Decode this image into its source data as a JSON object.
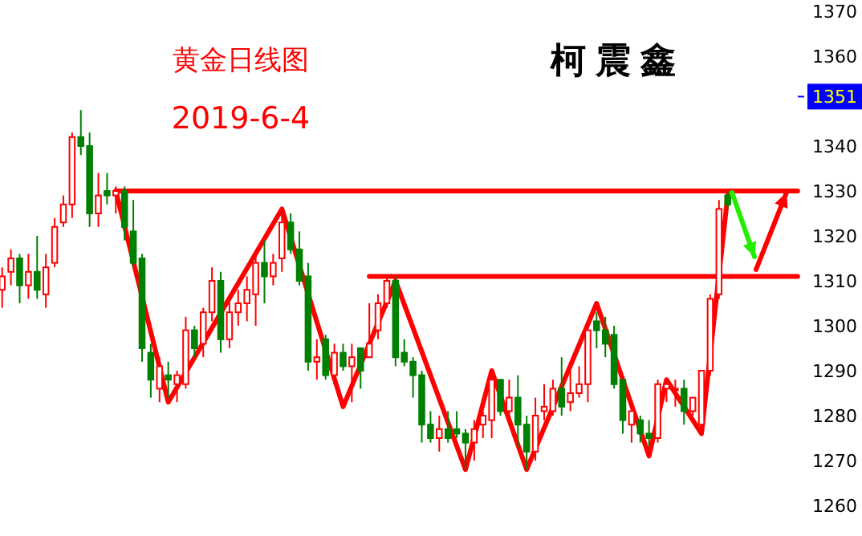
{
  "chart_data": {
    "type": "candlestick",
    "title": "黄金日线图",
    "subtitle": "2019-6-4",
    "annotations": [
      "柯震鑫"
    ],
    "categories": [
      null,
      null,
      null,
      null,
      null,
      null,
      null,
      null,
      null,
      null,
      null,
      null,
      null,
      null,
      null,
      null,
      null,
      null,
      null,
      null,
      null,
      null,
      null,
      null,
      null,
      null,
      null,
      null,
      null,
      null,
      null,
      null,
      null,
      null,
      null,
      null,
      null,
      null,
      null,
      null,
      null,
      null,
      null,
      null,
      null,
      null,
      null,
      null,
      null,
      null,
      null,
      null,
      null,
      null,
      null,
      null,
      null,
      null,
      null,
      null,
      null,
      null,
      null,
      null,
      null,
      null,
      null,
      null,
      null,
      null,
      null,
      null,
      null,
      null,
      null,
      null,
      null,
      null,
      null,
      null,
      null,
      null,
      null,
      null,
      null,
      null,
      null,
      null,
      null,
      null,
      null,
      null
    ],
    "ohlc": [
      [
        1308,
        1313,
        1304,
        1311
      ],
      [
        1312,
        1317,
        1309,
        1315
      ],
      [
        1315,
        1316,
        1305,
        1309
      ],
      [
        1309,
        1316,
        1306,
        1312
      ],
      [
        1312,
        1320,
        1306,
        1308
      ],
      [
        1307,
        1316,
        1304,
        1313
      ],
      [
        1314,
        1324,
        1313,
        1322
      ],
      [
        1323,
        1329,
        1322,
        1327
      ],
      [
        1327,
        1343,
        1324,
        1342
      ],
      [
        1342,
        1348,
        1338,
        1340
      ],
      [
        1340,
        1343,
        1322,
        1325
      ],
      [
        1325,
        1334,
        1322,
        1329
      ],
      [
        1330,
        1334,
        1327,
        1329
      ],
      [
        1329,
        1331,
        1325,
        1330
      ],
      [
        1330,
        1331,
        1319,
        1322
      ],
      [
        1321,
        1328,
        1313,
        1314
      ],
      [
        1315,
        1316,
        1292,
        1295
      ],
      [
        1294,
        1296,
        1284,
        1288
      ],
      [
        1286,
        1293,
        1283,
        1291
      ],
      [
        1289,
        1292,
        1284,
        1288
      ],
      [
        1287,
        1290,
        1283,
        1289
      ],
      [
        1287,
        1302,
        1286,
        1299
      ],
      [
        1299,
        1300,
        1293,
        1295
      ],
      [
        1296,
        1304,
        1293,
        1303
      ],
      [
        1303,
        1313,
        1301,
        1310
      ],
      [
        1310,
        1312,
        1294,
        1297
      ],
      [
        1297,
        1306,
        1295,
        1303
      ],
      [
        1303,
        1308,
        1300,
        1305
      ],
      [
        1305,
        1311,
        1301,
        1308
      ],
      [
        1307,
        1316,
        1300,
        1314
      ],
      [
        1314,
        1319,
        1305,
        1311
      ],
      [
        1311,
        1316,
        1309,
        1314
      ],
      [
        1315,
        1326,
        1312,
        1323
      ],
      [
        1323,
        1325,
        1316,
        1317
      ],
      [
        1317,
        1321,
        1309,
        1310
      ],
      [
        1311,
        1314,
        1290,
        1292
      ],
      [
        1292,
        1297,
        1288,
        1293
      ],
      [
        1297,
        1298,
        1288,
        1289
      ],
      [
        1289,
        1296,
        1287,
        1294
      ],
      [
        1294,
        1296,
        1290,
        1291
      ],
      [
        1291,
        1296,
        1283,
        1293
      ],
      [
        1295,
        1295,
        1286,
        1290
      ],
      [
        1293,
        1305,
        1293,
        1296
      ],
      [
        1299,
        1307,
        1297,
        1305
      ],
      [
        1305,
        1311,
        1304,
        1310
      ],
      [
        1310,
        1311,
        1291,
        1293
      ],
      [
        1294,
        1297,
        1291,
        1292
      ],
      [
        1292,
        1293,
        1284,
        1289
      ],
      [
        1289,
        1290,
        1274,
        1278
      ],
      [
        1278,
        1281,
        1274,
        1275
      ],
      [
        1275,
        1280,
        1272,
        1277
      ],
      [
        1277,
        1281,
        1274,
        1275
      ],
      [
        1277,
        1281,
        1275,
        1276
      ],
      [
        1276,
        1277,
        1268,
        1274
      ],
      [
        1274,
        1279,
        1270,
        1277
      ],
      [
        1278,
        1281,
        1275,
        1280
      ],
      [
        1279,
        1290,
        1275,
        1288
      ],
      [
        1288,
        1288,
        1280,
        1281
      ],
      [
        1281,
        1288,
        1280,
        1284
      ],
      [
        1284,
        1289,
        1273,
        1278
      ],
      [
        1278,
        1280,
        1268,
        1272
      ],
      [
        1272,
        1284,
        1270,
        1280
      ],
      [
        1281,
        1287,
        1279,
        1282
      ],
      [
        1281,
        1288,
        1280,
        1286
      ],
      [
        1286,
        1293,
        1280,
        1282
      ],
      [
        1283,
        1290,
        1281,
        1285
      ],
      [
        1285,
        1291,
        1284,
        1287
      ],
      [
        1287,
        1300,
        1283,
        1299
      ],
      [
        1301,
        1303,
        1295,
        1299
      ],
      [
        1299,
        1302,
        1293,
        1296
      ],
      [
        1298,
        1300,
        1286,
        1287
      ],
      [
        1288,
        1288,
        1276,
        1279
      ],
      [
        1278,
        1281,
        1274,
        1281
      ],
      [
        1279,
        1280,
        1274,
        1276
      ],
      [
        1276,
        1279,
        1273,
        1275
      ],
      [
        1275,
        1288,
        1274,
        1287
      ],
      [
        1286,
        1288,
        1283,
        1287
      ],
      [
        1286,
        1288,
        1282,
        1286
      ],
      [
        1286,
        1288,
        1278,
        1281
      ],
      [
        1281,
        1284,
        1280,
        1284
      ],
      [
        1278,
        1290,
        1277,
        1290
      ],
      [
        1290,
        1307,
        1289,
        1306
      ],
      [
        1307,
        1328,
        1306,
        1326
      ],
      [
        1329,
        1330,
        1326,
        1327
      ],
      null,
      null,
      null,
      null,
      null,
      null,
      null,
      null
    ],
    "series": [
      {
        "type": "line",
        "color": "#ff0000",
        "values": [
          null,
          null,
          null,
          null,
          null,
          null,
          null,
          null,
          null,
          null,
          null,
          null,
          null,
          1330,
          null,
          null,
          null,
          null,
          null,
          1283,
          null,
          null,
          null,
          null,
          null,
          null,
          null,
          null,
          null,
          null,
          null,
          null,
          1326,
          null,
          null,
          null,
          null,
          null,
          null,
          1282,
          null,
          null,
          null,
          null,
          null,
          1310,
          null,
          null,
          null,
          null,
          null,
          null,
          null,
          1268,
          null,
          null,
          1290,
          null,
          null,
          null,
          1268,
          null,
          null,
          null,
          null,
          null,
          null,
          null,
          1305,
          null,
          null,
          null,
          null,
          null,
          1271,
          null,
          1288,
          null,
          null,
          null,
          1276,
          null,
          null,
          1329,
          null,
          null,
          null,
          null,
          null,
          null,
          null,
          null
        ]
      },
      {
        "type": "line",
        "color": "#ff0000",
        "values": [
          null,
          null,
          null,
          null,
          null,
          null,
          null,
          null,
          null,
          null,
          null,
          null,
          null,
          1330,
          null,
          null,
          null,
          null,
          null,
          null,
          null,
          null,
          null,
          null,
          null,
          null,
          null,
          null,
          null,
          null,
          null,
          null,
          null,
          null,
          null,
          null,
          null,
          null,
          null,
          null,
          null,
          null,
          null,
          null,
          null,
          null,
          null,
          null,
          null,
          null,
          null,
          null,
          null,
          null,
          null,
          null,
          null,
          null,
          null,
          null,
          null,
          null,
          null,
          null,
          null,
          null,
          null,
          null,
          null,
          null,
          null,
          null,
          null,
          null,
          null,
          null,
          null,
          null,
          null,
          null,
          null,
          null,
          null,
          null,
          null,
          null,
          null,
          null,
          null,
          null,
          null,
          1330
        ]
      },
      {
        "type": "line",
        "color": "#ff0000",
        "values": [
          null,
          null,
          null,
          null,
          null,
          null,
          null,
          null,
          null,
          null,
          null,
          null,
          null,
          null,
          null,
          null,
          null,
          null,
          null,
          null,
          null,
          null,
          null,
          null,
          null,
          null,
          null,
          null,
          null,
          null,
          null,
          null,
          null,
          null,
          null,
          null,
          null,
          null,
          null,
          null,
          null,
          null,
          1311,
          null,
          null,
          null,
          null,
          null,
          null,
          null,
          null,
          null,
          null,
          null,
          null,
          null,
          null,
          null,
          null,
          null,
          null,
          null,
          null,
          null,
          null,
          null,
          null,
          null,
          null,
          null,
          null,
          null,
          null,
          null,
          null,
          null,
          null,
          null,
          null,
          null,
          null,
          null,
          null,
          null,
          null,
          null,
          null,
          null,
          null,
          null,
          null,
          1311
        ]
      }
    ],
    "ylim": [
      1260,
      1370
    ],
    "yticks": [
      1260,
      1270,
      1280,
      1290,
      1300,
      1310,
      1320,
      1330,
      1340,
      1360,
      1370
    ],
    "ref_lines": [
      {
        "axis": "y",
        "value": 1351,
        "label": "1351",
        "color": "#0000ff"
      }
    ],
    "grid": false
  }
}
